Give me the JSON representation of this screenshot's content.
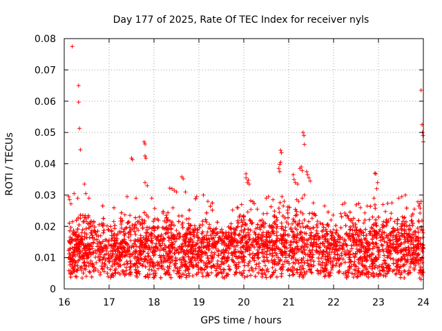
{
  "chart_data": {
    "type": "scatter",
    "title": "Day 177 of 2025, Rate Of TEC Index for receiver nyls",
    "xlabel": "GPS time / hours",
    "ylabel": "ROTI / TECUs",
    "xlim": [
      16,
      24
    ],
    "ylim": [
      0,
      0.08
    ],
    "grid": true,
    "marker": "+",
    "color": "#ff0000",
    "x_ticks": [
      "16",
      "17",
      "18",
      "19",
      "20",
      "21",
      "22",
      "23",
      "24"
    ],
    "y_ticks": [
      "0",
      "0.01",
      "0.02",
      "0.03",
      "0.04",
      "0.05",
      "0.06",
      "0.07",
      "0.08"
    ],
    "series": [
      {
        "name": "ROTI",
        "points": [
          [
            16.18,
            0.0775
          ],
          [
            16.32,
            0.065
          ],
          [
            16.32,
            0.0597
          ],
          [
            16.34,
            0.0513
          ],
          [
            16.36,
            0.0445
          ],
          [
            16.1,
            0.0295
          ],
          [
            16.12,
            0.0285
          ],
          [
            16.15,
            0.0272
          ],
          [
            16.22,
            0.0305
          ],
          [
            16.3,
            0.029
          ],
          [
            16.45,
            0.0335
          ],
          [
            16.48,
            0.0305
          ],
          [
            16.55,
            0.029
          ],
          [
            17.5,
            0.0418
          ],
          [
            17.52,
            0.0413
          ],
          [
            17.78,
            0.047
          ],
          [
            17.8,
            0.0463
          ],
          [
            17.8,
            0.0425
          ],
          [
            17.82,
            0.0418
          ],
          [
            17.8,
            0.034
          ],
          [
            17.85,
            0.033
          ],
          [
            17.4,
            0.0295
          ],
          [
            17.6,
            0.029
          ],
          [
            17.95,
            0.029
          ],
          [
            18.35,
            0.0322
          ],
          [
            18.4,
            0.032
          ],
          [
            18.45,
            0.0315
          ],
          [
            18.5,
            0.031
          ],
          [
            18.62,
            0.0358
          ],
          [
            18.65,
            0.0352
          ],
          [
            18.7,
            0.031
          ],
          [
            18.95,
            0.0295
          ],
          [
            19.1,
            0.03
          ],
          [
            19.2,
            0.028
          ],
          [
            19.3,
            0.0275
          ],
          [
            19.75,
            0.0252
          ],
          [
            19.85,
            0.026
          ],
          [
            19.95,
            0.027
          ],
          [
            20.05,
            0.0368
          ],
          [
            20.05,
            0.0355
          ],
          [
            20.08,
            0.034
          ],
          [
            20.1,
            0.0348
          ],
          [
            20.12,
            0.0335
          ],
          [
            20.3,
            0.0255
          ],
          [
            20.5,
            0.029
          ],
          [
            20.55,
            0.0295
          ],
          [
            20.65,
            0.0285
          ],
          [
            20.78,
            0.0385
          ],
          [
            20.8,
            0.0398
          ],
          [
            20.82,
            0.0405
          ],
          [
            20.82,
            0.0443
          ],
          [
            20.84,
            0.0435
          ],
          [
            20.8,
            0.0375
          ],
          [
            20.85,
            0.0295
          ],
          [
            20.88,
            0.0265
          ],
          [
            20.9,
            0.028
          ],
          [
            21.1,
            0.0365
          ],
          [
            21.12,
            0.035
          ],
          [
            21.15,
            0.034
          ],
          [
            21.2,
            0.0335
          ],
          [
            21.25,
            0.0385
          ],
          [
            21.28,
            0.039
          ],
          [
            21.3,
            0.0378
          ],
          [
            21.32,
            0.05
          ],
          [
            21.34,
            0.049
          ],
          [
            21.35,
            0.0462
          ],
          [
            21.4,
            0.0375
          ],
          [
            21.42,
            0.0365
          ],
          [
            21.45,
            0.0355
          ],
          [
            21.48,
            0.0345
          ],
          [
            21.18,
            0.0285
          ],
          [
            21.22,
            0.028
          ],
          [
            21.3,
            0.029
          ],
          [
            21.35,
            0.03
          ],
          [
            21.55,
            0.0275
          ],
          [
            21.8,
            0.0265
          ],
          [
            22.2,
            0.027
          ],
          [
            22.25,
            0.0275
          ],
          [
            22.6,
            0.026
          ],
          [
            22.75,
            0.0265
          ],
          [
            22.9,
            0.029
          ],
          [
            22.92,
            0.037
          ],
          [
            22.94,
            0.0368
          ],
          [
            22.96,
            0.032
          ],
          [
            22.98,
            0.034
          ],
          [
            23.1,
            0.027
          ],
          [
            23.3,
            0.0275
          ],
          [
            23.45,
            0.029
          ],
          [
            23.52,
            0.0295
          ],
          [
            23.6,
            0.03
          ],
          [
            23.8,
            0.0255
          ],
          [
            23.9,
            0.0265
          ],
          [
            23.92,
            0.0272
          ],
          [
            23.95,
            0.028
          ],
          [
            23.95,
            0.0635
          ],
          [
            23.97,
            0.0525
          ],
          [
            23.98,
            0.05
          ],
          [
            23.99,
            0.049
          ],
          [
            24.0,
            0.047
          ],
          [
            16.25,
            0.004
          ],
          [
            16.4,
            0.0035
          ],
          [
            16.8,
            0.0045
          ],
          [
            17.6,
            0.0042
          ],
          [
            18.55,
            0.005
          ],
          [
            18.95,
            0.0048
          ],
          [
            19.4,
            0.0045
          ],
          [
            20.4,
            0.005
          ],
          [
            21.3,
            0.0045
          ],
          [
            21.9,
            0.004
          ],
          [
            22.6,
            0.0045
          ],
          [
            23.2,
            0.005
          ],
          [
            23.65,
            0.0048
          ],
          [
            23.92,
            0.0035
          ],
          [
            23.95,
            0.003
          ]
        ]
      }
    ],
    "band": {
      "x_start": 16.1,
      "x_end": 24.0,
      "segments": [
        [
          16.1,
          0.0125,
          0.005
        ],
        [
          16.5,
          0.013,
          0.0055
        ],
        [
          17.0,
          0.0125,
          0.0052
        ],
        [
          17.5,
          0.013,
          0.0055
        ],
        [
          18.0,
          0.0135,
          0.0058
        ],
        [
          18.5,
          0.0135,
          0.0057
        ],
        [
          19.0,
          0.013,
          0.0055
        ],
        [
          19.5,
          0.013,
          0.0052
        ],
        [
          20.0,
          0.014,
          0.0056
        ],
        [
          20.5,
          0.014,
          0.0058
        ],
        [
          21.0,
          0.014,
          0.0058
        ],
        [
          21.5,
          0.0135,
          0.0057
        ],
        [
          22.0,
          0.0125,
          0.0052
        ],
        [
          22.5,
          0.013,
          0.0055
        ],
        [
          23.0,
          0.013,
          0.0058
        ],
        [
          23.5,
          0.0135,
          0.006
        ],
        [
          24.0,
          0.013,
          0.0058
        ]
      ],
      "count": 5200
    }
  }
}
